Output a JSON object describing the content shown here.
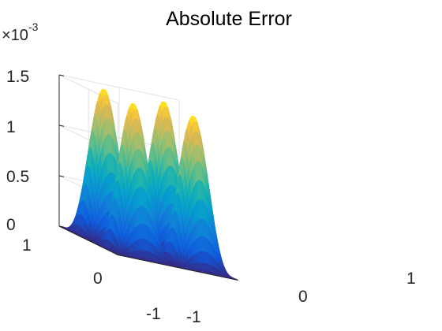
{
  "chart_data": {
    "type": "surface",
    "title": "Absolute Error",
    "z_multiplier_label": "×10",
    "z_multiplier_exponent": "-3",
    "z_function": "1.5e-3 * sin^2(pi*x) * sin^2(pi*y)",
    "z_peak": 0.0015,
    "x_range": [
      -1,
      1
    ],
    "y_range": [
      -1,
      1
    ],
    "z_range": [
      0,
      0.0015
    ],
    "x_ticks": [
      "-1",
      "0",
      "1"
    ],
    "y_ticks": [
      "-1",
      "0",
      "1"
    ],
    "z_ticks": [
      "0",
      "0.5",
      "1",
      "1.5"
    ],
    "grid": true,
    "colormap": "parula"
  }
}
